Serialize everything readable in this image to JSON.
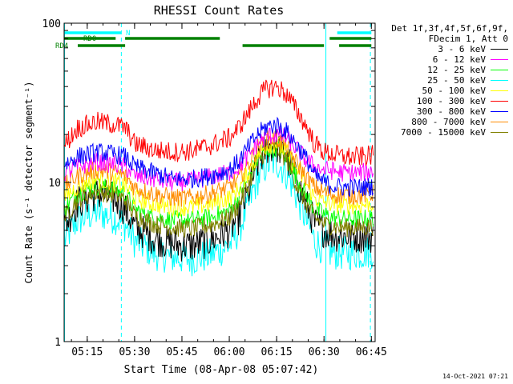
{
  "chart_data": {
    "type": "line",
    "title": "RHESSI Count Rates",
    "xlabel": "Start Time (08-Apr-08 05:07:42)",
    "ylabel": "Count Rate (s⁻¹ detector segment⁻¹)",
    "y_scale": "log",
    "ylim": [
      1,
      100
    ],
    "xlim_minutes": [
      5.2,
      6.77
    ],
    "x_tick_labels": [
      "05:15",
      "05:30",
      "05:45",
      "06:00",
      "06:15",
      "06:30",
      "06:45"
    ],
    "x_tick_values_hours": [
      5.25,
      5.5,
      5.75,
      6.0,
      6.25,
      6.5,
      6.75
    ],
    "y_tick_labels": [
      "1",
      "10",
      "100"
    ],
    "y_tick_values": [
      1,
      10,
      100
    ],
    "grid": false,
    "legend_placement": "right",
    "legend_header": [
      "Det 1f,3f,4f,5f,6f,9f,",
      "FDecim 1, Att 0"
    ],
    "x_hours": [
      5.13,
      5.2,
      5.3,
      5.4,
      5.45,
      5.5,
      5.6,
      5.7,
      5.8,
      5.9,
      6.0,
      6.05,
      6.1,
      6.15,
      6.2,
      6.25,
      6.3,
      6.35,
      6.4,
      6.45,
      6.5,
      6.55,
      6.6,
      6.7,
      6.76
    ],
    "series": [
      {
        "name": "3 - 6 keV",
        "color": "#000000",
        "values": [
          5.3,
          7.5,
          8.5,
          7.8,
          6.8,
          5.2,
          4.5,
          4.1,
          4.0,
          4.3,
          5.0,
          6.0,
          8.5,
          13.0,
          16.5,
          17.0,
          14.5,
          10.5,
          7.5,
          5.5,
          5.0,
          4.7,
          4.6,
          4.6,
          4.6
        ]
      },
      {
        "name": "6 - 12 keV",
        "color": "#ff00ff",
        "values": [
          11.5,
          12.5,
          13.5,
          13.0,
          12.5,
          11.0,
          10.5,
          10.0,
          10.2,
          10.8,
          11.5,
          12.5,
          14.5,
          17.5,
          19.5,
          20.0,
          19.0,
          16.5,
          14.0,
          12.5,
          12.0,
          11.8,
          11.5,
          11.5,
          11.8
        ]
      },
      {
        "name": "12 - 25 keV",
        "color": "#00ff00",
        "values": [
          6.8,
          8.5,
          9.5,
          9.0,
          8.5,
          6.8,
          6.0,
          5.8,
          5.8,
          6.0,
          6.6,
          8.0,
          10.5,
          14.0,
          16.0,
          16.5,
          14.5,
          11.0,
          8.5,
          6.8,
          6.3,
          6.0,
          5.9,
          5.9,
          6.0
        ]
      },
      {
        "name": "25 - 50 keV",
        "color": "#00ffff",
        "values": [
          4.3,
          5.8,
          6.5,
          6.0,
          5.4,
          4.3,
          3.6,
          3.4,
          3.3,
          3.5,
          4.0,
          5.0,
          7.0,
          10.5,
          13.0,
          13.5,
          11.5,
          8.5,
          6.0,
          4.3,
          3.8,
          3.6,
          3.6,
          3.6,
          3.7
        ]
      },
      {
        "name": "50 - 100 keV",
        "color": "#ffff00",
        "values": [
          8.0,
          9.5,
          10.5,
          10.0,
          9.5,
          8.0,
          7.3,
          7.0,
          7.0,
          7.3,
          8.0,
          9.0,
          11.5,
          15.0,
          17.0,
          17.5,
          15.5,
          12.5,
          10.0,
          8.0,
          7.5,
          7.3,
          7.2,
          7.2,
          7.4
        ]
      },
      {
        "name": "100 - 300 keV",
        "color": "#ff0000",
        "values": [
          17.0,
          22.0,
          24.0,
          23.0,
          22.0,
          17.5,
          16.0,
          15.5,
          15.8,
          17.0,
          19.0,
          22.0,
          27.0,
          34.0,
          39.0,
          40.0,
          36.0,
          29.0,
          23.0,
          17.5,
          15.5,
          15.0,
          14.5,
          14.5,
          14.8
        ]
      },
      {
        "name": "300 - 800 keV",
        "color": "#0000ff",
        "values": [
          13.0,
          14.5,
          15.5,
          15.0,
          14.5,
          12.5,
          11.5,
          10.5,
          10.5,
          11.0,
          12.0,
          13.5,
          16.5,
          20.0,
          22.5,
          23.0,
          21.0,
          17.5,
          14.5,
          11.0,
          10.0,
          9.5,
          9.3,
          9.3,
          9.5
        ]
      },
      {
        "name": "800 - 7000 keV",
        "color": "#ff8c00",
        "values": [
          9.5,
          11.0,
          12.0,
          11.5,
          11.0,
          9.3,
          8.5,
          8.0,
          8.0,
          8.5,
          9.3,
          10.5,
          13.0,
          16.5,
          18.5,
          19.0,
          17.0,
          13.5,
          11.0,
          9.3,
          8.7,
          8.4,
          8.3,
          8.3,
          8.5
        ]
      },
      {
        "name": "7000 - 15000 keV",
        "color": "#808000",
        "values": [
          6.0,
          7.8,
          8.8,
          8.3,
          7.8,
          6.2,
          5.5,
          5.2,
          5.1,
          5.4,
          6.0,
          7.2,
          9.5,
          13.5,
          16.0,
          16.5,
          14.0,
          10.0,
          7.5,
          6.0,
          5.5,
          5.3,
          5.2,
          5.2,
          5.3
        ]
      }
    ],
    "state_bars": [
      {
        "label": "N",
        "color": "#00ffff",
        "segments": [
          [
            5.13,
            5.43
          ],
          [
            6.57,
            6.75
          ]
        ]
      },
      {
        "label": "RD0",
        "color": "#008000",
        "segments": [
          [
            5.13,
            5.4
          ],
          [
            5.45,
            5.95
          ],
          [
            6.53,
            6.75
          ]
        ]
      },
      {
        "label": "RD4",
        "color": "#008000",
        "segments": [
          [
            5.13,
            5.13
          ],
          [
            5.2,
            5.45
          ],
          [
            6.07,
            6.5
          ],
          [
            6.58,
            6.75
          ]
        ]
      }
    ],
    "vertical_markers": [
      {
        "x_hours": 5.13,
        "style": "solid",
        "color": "#00ffff"
      },
      {
        "x_hours": 5.43,
        "style": "dashed",
        "color": "#00ffff"
      },
      {
        "x_hours": 6.51,
        "style": "solid",
        "color": "#00ffff"
      },
      {
        "x_hours": 6.745,
        "style": "dashed",
        "color": "#00ffff"
      }
    ],
    "footer_text": "14-Oct-2021 07:21"
  }
}
